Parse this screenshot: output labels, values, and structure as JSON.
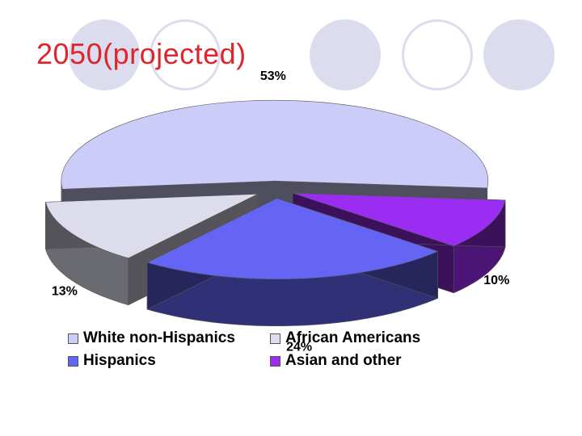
{
  "title": "2050(projected)",
  "chart_data": {
    "type": "pie",
    "title": "2050(projected)",
    "three_d": true,
    "exploded": true,
    "categories": [
      "White non-Hispanics",
      "African Americans",
      "Hispanics",
      "Asian and other"
    ],
    "values": [
      53,
      13,
      24,
      10
    ],
    "value_labels": [
      "53%",
      "13%",
      "24%",
      "10%"
    ],
    "colors": [
      "#ccccf8",
      "#dcdcec",
      "#6565f5",
      "#9b2cf2"
    ],
    "legend": {
      "position": "bottom",
      "entries": [
        "White non-Hispanics",
        "African Americans",
        "Hispanics",
        "Asian and other"
      ]
    }
  }
}
